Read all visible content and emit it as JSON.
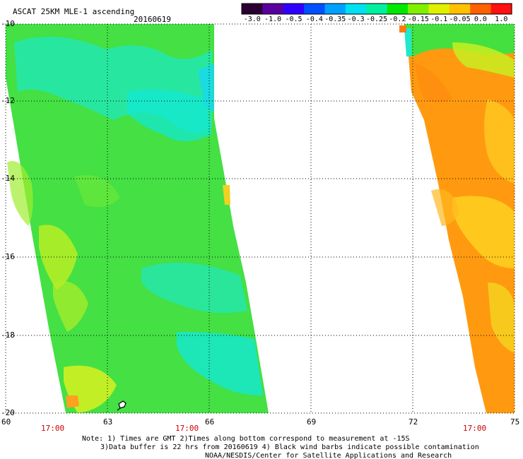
{
  "header": {
    "title": "ASCAT 25KM MLE-1 ascending",
    "date": "20160619"
  },
  "colorbar": {
    "labels": [
      "-3.0",
      "-1.0",
      "-0.5",
      "-0.4",
      "-0.35",
      "-0.3",
      "-0.25",
      "-0.2",
      "-0.15",
      "-0.1",
      "-0.05",
      "0.0",
      "1.0"
    ],
    "colors": [
      "#2a0033",
      "#5a00a0",
      "#3000ff",
      "#0050ff",
      "#00a0ff",
      "#00e0f0",
      "#00f0a0",
      "#00e800",
      "#80f000",
      "#e0f000",
      "#ffc000",
      "#ff6000",
      "#ff1010"
    ]
  },
  "axes": {
    "lat_labels": [
      "-10",
      "-12",
      "-14",
      "-16",
      "-18",
      "-20"
    ],
    "lat_values": [
      -10,
      -12,
      -14,
      -16,
      -18,
      -20
    ],
    "lon_labels": [
      "60",
      "63",
      "66",
      "69",
      "72",
      "75"
    ],
    "lon_values": [
      60,
      63,
      66,
      69,
      72,
      75
    ]
  },
  "times": [
    "17:00",
    "17:00",
    "17:00"
  ],
  "notes": {
    "line1": "Note: 1) Times are GMT 2)Times along bottom correspond to measurement at -15S",
    "line2": "3)Data buffer is 22 hrs from 20160619 4) Black wind barbs indicate possible contamination",
    "line3": "NOAA/NESDIS/Center for Satellite Applications and Research"
  }
}
